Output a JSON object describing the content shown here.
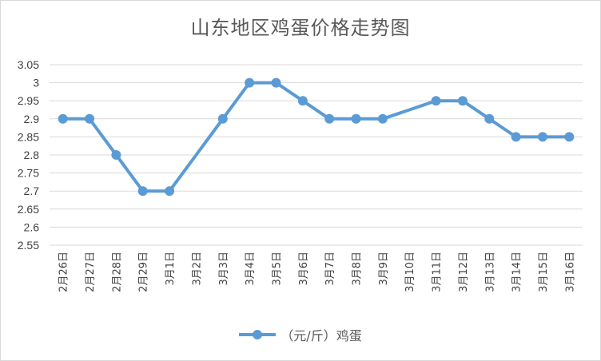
{
  "chart_data": {
    "type": "line",
    "title": "山东地区鸡蛋价格走势图",
    "categories": [
      "2月26日",
      "2月27日",
      "2月28日",
      "2月29日",
      "3月1日",
      "3月2日",
      "3月3日",
      "3月4日",
      "3月5日",
      "3月6日",
      "3月7日",
      "3月8日",
      "3月9日",
      "3月10日",
      "3月11日",
      "3月12日",
      "3月13日",
      "3月14日",
      "3月15日",
      "3月16日"
    ],
    "series": [
      {
        "name": "（元/斤）鸡蛋",
        "values": [
          2.9,
          2.9,
          2.8,
          2.7,
          2.7,
          null,
          2.9,
          3.0,
          3.0,
          2.95,
          2.9,
          2.9,
          2.9,
          null,
          2.95,
          2.95,
          2.9,
          2.85,
          2.85,
          2.85
        ],
        "color": "#5b9bd5"
      }
    ],
    "yticks": [
      "3.05",
      "3",
      "2.95",
      "2.9",
      "2.85",
      "2.8",
      "2.75",
      "2.7",
      "2.65",
      "2.6",
      "2.55"
    ],
    "ylim": [
      2.55,
      3.05
    ],
    "grid": true,
    "legend_position": "bottom"
  }
}
